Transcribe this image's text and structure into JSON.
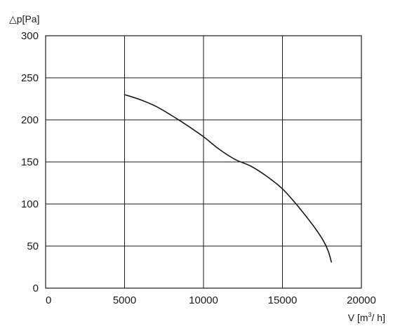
{
  "chart_data": {
    "type": "line",
    "ylabel": "△p[Pa]",
    "xlabel": {
      "prefix": "V [m",
      "sup": "3",
      "suffix": "/ h]"
    },
    "xlim": [
      0,
      20000
    ],
    "ylim": [
      0,
      300
    ],
    "x_ticks": [
      {
        "value": 0,
        "label": "0"
      },
      {
        "value": 5000,
        "label": "5000"
      },
      {
        "value": 10000,
        "label": "10000"
      },
      {
        "value": 15000,
        "label": "15000"
      },
      {
        "value": 20000,
        "label": "20000"
      }
    ],
    "y_ticks": [
      {
        "value": 0,
        "label": "0"
      },
      {
        "value": 50,
        "label": "50"
      },
      {
        "value": 100,
        "label": "100"
      },
      {
        "value": 150,
        "label": "150"
      },
      {
        "value": 200,
        "label": "200"
      },
      {
        "value": 250,
        "label": "250"
      },
      {
        "value": 300,
        "label": "300"
      }
    ],
    "grid": true,
    "series": [
      {
        "color": "#1a1a1a",
        "points": [
          [
            5000,
            230
          ],
          [
            6000,
            224
          ],
          [
            7000,
            216
          ],
          [
            8000,
            205
          ],
          [
            9000,
            193
          ],
          [
            10000,
            180
          ],
          [
            11000,
            165
          ],
          [
            12000,
            153
          ],
          [
            13000,
            145
          ],
          [
            14000,
            133
          ],
          [
            15000,
            118
          ],
          [
            16000,
            97
          ],
          [
            17000,
            73
          ],
          [
            17600,
            56
          ],
          [
            17900,
            44
          ],
          [
            18100,
            31
          ]
        ]
      }
    ]
  }
}
